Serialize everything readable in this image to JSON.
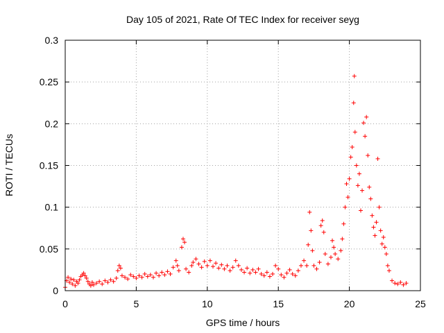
{
  "chart_data": {
    "type": "scatter",
    "title": "Day 105 of 2021, Rate Of TEC Index for receiver seyg",
    "xlabel": "GPS time / hours",
    "ylabel": "ROTI / TECUs",
    "xlim": [
      0,
      25
    ],
    "ylim": [
      0,
      0.3
    ],
    "xticks": [
      0,
      5,
      10,
      15,
      20,
      25
    ],
    "xtick_labels": [
      "0",
      "5",
      "10",
      "15",
      "20",
      "25"
    ],
    "yticks": [
      0,
      0.05,
      0.1,
      0.15,
      0.2,
      0.25,
      0.3
    ],
    "ytick_labels": [
      "0",
      "0.05",
      "0.1",
      "0.15",
      "0.2",
      "0.25",
      "0.3"
    ],
    "grid": true,
    "marker": "plus",
    "color": "#ff0000",
    "series": [
      {
        "points": [
          [
            0.0,
            0.004
          ],
          [
            0.1,
            0.012
          ],
          [
            0.2,
            0.016
          ],
          [
            0.3,
            0.01
          ],
          [
            0.4,
            0.014
          ],
          [
            0.5,
            0.008
          ],
          [
            0.6,
            0.013
          ],
          [
            0.7,
            0.006
          ],
          [
            0.8,
            0.011
          ],
          [
            0.9,
            0.009
          ],
          [
            1.0,
            0.013
          ],
          [
            1.1,
            0.017
          ],
          [
            1.2,
            0.019
          ],
          [
            1.3,
            0.021
          ],
          [
            1.4,
            0.018
          ],
          [
            1.5,
            0.015
          ],
          [
            1.6,
            0.011
          ],
          [
            1.7,
            0.008
          ],
          [
            1.8,
            0.006
          ],
          [
            1.9,
            0.01
          ],
          [
            2.0,
            0.007
          ],
          [
            2.2,
            0.009
          ],
          [
            2.4,
            0.011
          ],
          [
            2.6,
            0.008
          ],
          [
            2.8,
            0.012
          ],
          [
            3.0,
            0.01
          ],
          [
            3.2,
            0.013
          ],
          [
            3.4,
            0.011
          ],
          [
            3.6,
            0.015
          ],
          [
            3.7,
            0.024
          ],
          [
            3.8,
            0.03
          ],
          [
            3.9,
            0.027
          ],
          [
            4.0,
            0.018
          ],
          [
            4.2,
            0.016
          ],
          [
            4.4,
            0.014
          ],
          [
            4.6,
            0.019
          ],
          [
            4.8,
            0.017
          ],
          [
            5.0,
            0.015
          ],
          [
            5.2,
            0.018
          ],
          [
            5.4,
            0.016
          ],
          [
            5.6,
            0.02
          ],
          [
            5.8,
            0.017
          ],
          [
            6.0,
            0.019
          ],
          [
            6.2,
            0.016
          ],
          [
            6.4,
            0.021
          ],
          [
            6.6,
            0.018
          ],
          [
            6.8,
            0.022
          ],
          [
            7.0,
            0.019
          ],
          [
            7.2,
            0.023
          ],
          [
            7.4,
            0.02
          ],
          [
            7.6,
            0.028
          ],
          [
            7.8,
            0.036
          ],
          [
            7.9,
            0.03
          ],
          [
            8.0,
            0.024
          ],
          [
            8.2,
            0.052
          ],
          [
            8.3,
            0.062
          ],
          [
            8.4,
            0.058
          ],
          [
            8.5,
            0.026
          ],
          [
            8.7,
            0.022
          ],
          [
            8.9,
            0.03
          ],
          [
            9.0,
            0.034
          ],
          [
            9.2,
            0.038
          ],
          [
            9.4,
            0.032
          ],
          [
            9.6,
            0.028
          ],
          [
            9.8,
            0.035
          ],
          [
            10.0,
            0.03
          ],
          [
            10.2,
            0.036
          ],
          [
            10.4,
            0.029
          ],
          [
            10.6,
            0.033
          ],
          [
            10.8,
            0.027
          ],
          [
            11.0,
            0.031
          ],
          [
            11.2,
            0.026
          ],
          [
            11.4,
            0.03
          ],
          [
            11.6,
            0.024
          ],
          [
            11.8,
            0.028
          ],
          [
            12.0,
            0.036
          ],
          [
            12.2,
            0.03
          ],
          [
            12.4,
            0.025
          ],
          [
            12.6,
            0.022
          ],
          [
            12.8,
            0.027
          ],
          [
            13.0,
            0.021
          ],
          [
            13.2,
            0.025
          ],
          [
            13.4,
            0.022
          ],
          [
            13.6,
            0.026
          ],
          [
            13.8,
            0.02
          ],
          [
            14.0,
            0.018
          ],
          [
            14.2,
            0.022
          ],
          [
            14.4,
            0.017
          ],
          [
            14.6,
            0.02
          ],
          [
            14.8,
            0.03
          ],
          [
            15.0,
            0.026
          ],
          [
            15.2,
            0.019
          ],
          [
            15.4,
            0.016
          ],
          [
            15.6,
            0.021
          ],
          [
            15.8,
            0.025
          ],
          [
            16.0,
            0.02
          ],
          [
            16.2,
            0.018
          ],
          [
            16.4,
            0.024
          ],
          [
            16.6,
            0.03
          ],
          [
            16.8,
            0.036
          ],
          [
            17.0,
            0.03
          ],
          [
            17.1,
            0.055
          ],
          [
            17.2,
            0.094
          ],
          [
            17.3,
            0.072
          ],
          [
            17.4,
            0.048
          ],
          [
            17.5,
            0.03
          ],
          [
            17.7,
            0.026
          ],
          [
            17.9,
            0.034
          ],
          [
            18.0,
            0.078
          ],
          [
            18.1,
            0.084
          ],
          [
            18.2,
            0.07
          ],
          [
            18.3,
            0.044
          ],
          [
            18.5,
            0.032
          ],
          [
            18.7,
            0.04
          ],
          [
            18.8,
            0.06
          ],
          [
            18.9,
            0.052
          ],
          [
            19.0,
            0.044
          ],
          [
            19.2,
            0.038
          ],
          [
            19.4,
            0.048
          ],
          [
            19.5,
            0.062
          ],
          [
            19.6,
            0.08
          ],
          [
            19.7,
            0.1
          ],
          [
            19.8,
            0.128
          ],
          [
            19.9,
            0.112
          ],
          [
            20.0,
            0.134
          ],
          [
            20.1,
            0.16
          ],
          [
            20.2,
            0.172
          ],
          [
            20.3,
            0.225
          ],
          [
            20.35,
            0.257
          ],
          [
            20.4,
            0.19
          ],
          [
            20.5,
            0.15
          ],
          [
            20.6,
            0.126
          ],
          [
            20.7,
            0.14
          ],
          [
            20.8,
            0.096
          ],
          [
            20.9,
            0.12
          ],
          [
            21.0,
            0.201
          ],
          [
            21.1,
            0.185
          ],
          [
            21.2,
            0.208
          ],
          [
            21.3,
            0.162
          ],
          [
            21.4,
            0.124
          ],
          [
            21.5,
            0.11
          ],
          [
            21.6,
            0.09
          ],
          [
            21.7,
            0.076
          ],
          [
            21.8,
            0.066
          ],
          [
            21.9,
            0.082
          ],
          [
            22.0,
            0.158
          ],
          [
            22.1,
            0.1
          ],
          [
            22.2,
            0.072
          ],
          [
            22.3,
            0.056
          ],
          [
            22.4,
            0.064
          ],
          [
            22.5,
            0.052
          ],
          [
            22.6,
            0.044
          ],
          [
            22.7,
            0.03
          ],
          [
            22.8,
            0.024
          ],
          [
            23.0,
            0.012
          ],
          [
            23.2,
            0.009
          ],
          [
            23.4,
            0.008
          ],
          [
            23.6,
            0.01
          ],
          [
            23.8,
            0.007
          ],
          [
            24.0,
            0.009
          ]
        ]
      }
    ]
  }
}
